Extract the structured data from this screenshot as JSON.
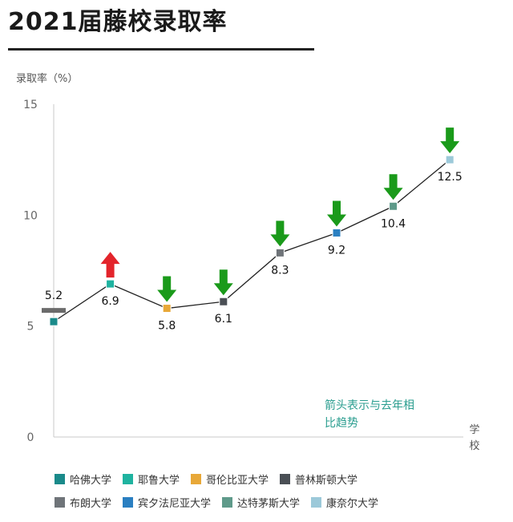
{
  "header": {
    "title": "2021届藤校录取率"
  },
  "chart_data": {
    "type": "line",
    "ylabel": "录取率（%）",
    "xlabel": "学校",
    "ylim": [
      0,
      15
    ],
    "yticks": [
      "0",
      "5",
      "10",
      "15"
    ],
    "categories": [
      "哈佛大学",
      "耶鲁大学",
      "哥伦比亚大学",
      "普林斯顿大学",
      "布朗大学",
      "宾夕法尼亚大学",
      "达特茅斯大学",
      "康奈尔大学"
    ],
    "values": [
      5.2,
      6.9,
      5.8,
      6.1,
      8.3,
      9.2,
      10.4,
      12.5
    ],
    "data_labels": [
      "5.2",
      "6.9",
      "5.8",
      "6.1",
      "8.3",
      "9.2",
      "10.4",
      "12.5"
    ],
    "trend": [
      "flat",
      "up",
      "down",
      "down",
      "down",
      "down",
      "down",
      "down"
    ],
    "colors": [
      "#1a8a8a",
      "#1fb3a0",
      "#e8a838",
      "#4a4f55",
      "#6f7479",
      "#2a7fc1",
      "#5f9a8a",
      "#9cc9d9"
    ],
    "arrow_colors": {
      "up": "#e3242b",
      "down": "#1a9a1a",
      "flat": "#6b6b6b"
    },
    "annotation": [
      "箭头表示与去年相",
      "比趋势"
    ]
  }
}
